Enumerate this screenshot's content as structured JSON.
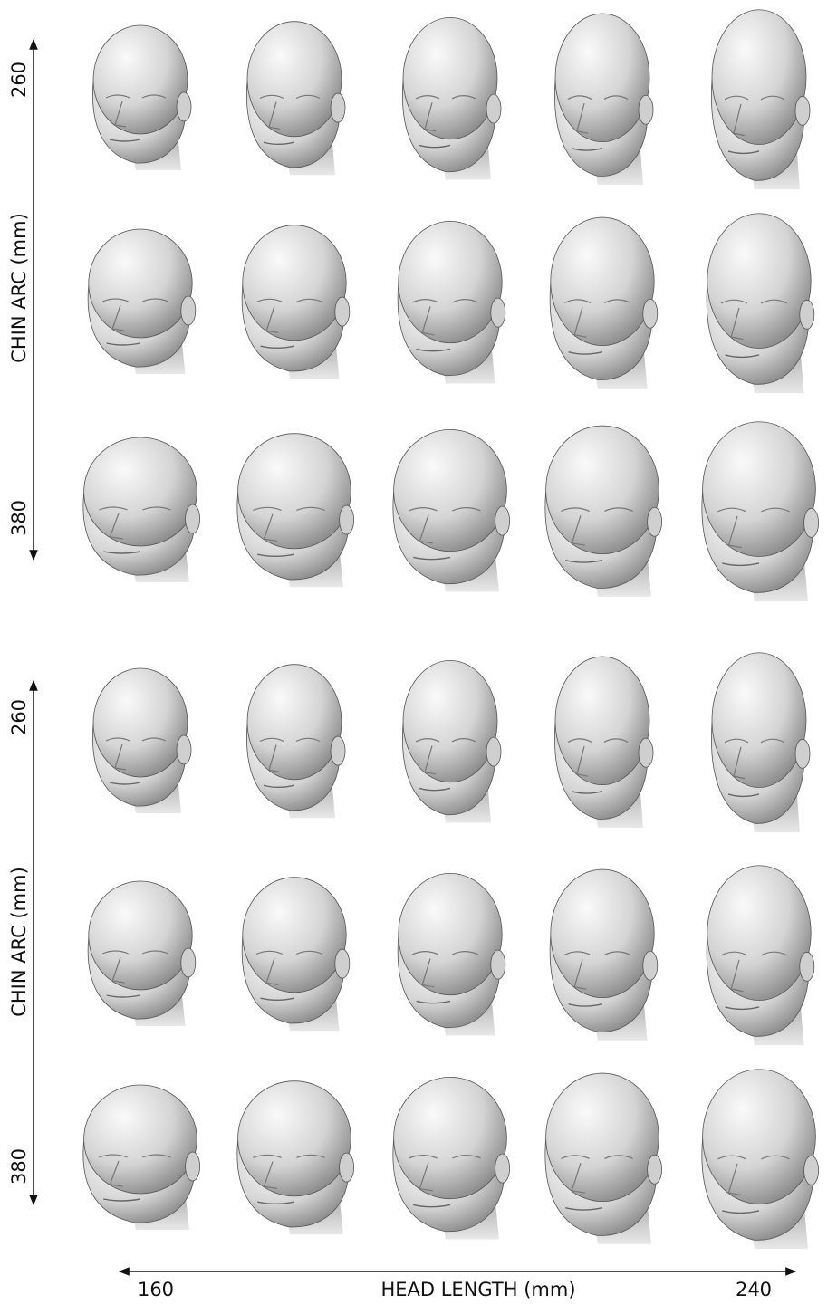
{
  "panels": [
    {
      "y_axis": {
        "top": "260",
        "label": "CHIN ARC (mm)",
        "bottom": "380"
      }
    },
    {
      "y_axis": {
        "top": "260",
        "label": "CHIN ARC (mm)",
        "bottom": "380"
      }
    }
  ],
  "x_axis": {
    "left": "160",
    "label": "HEAD LENGTH (mm)",
    "right": "240"
  }
}
